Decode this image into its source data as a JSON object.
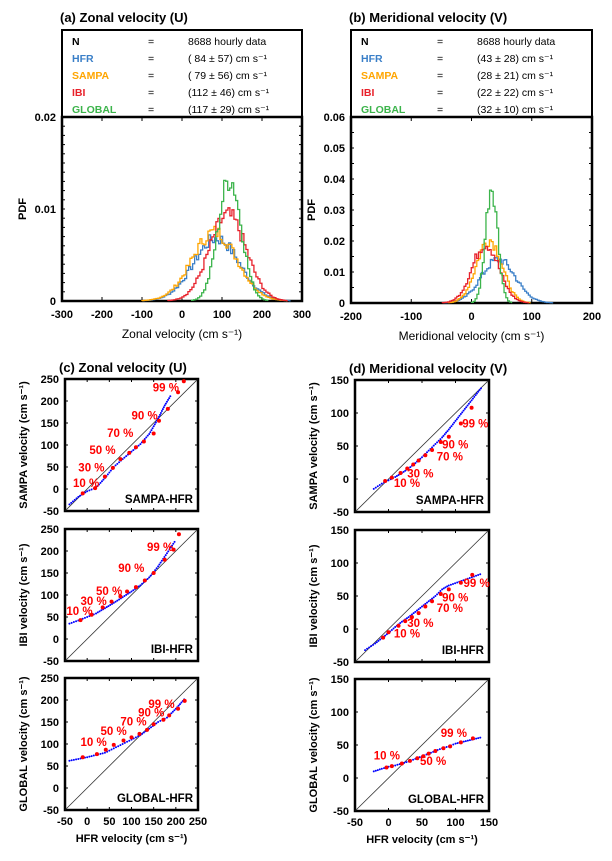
{
  "colors": {
    "HFR": "#3a7fc8",
    "SAMPA": "#ffa500",
    "IBI": "#e8202a",
    "GLOBAL": "#3cb44b",
    "qq_points": "#0000ff",
    "qq_percentiles": "#ff0000"
  },
  "chart_data": [
    {
      "id": "a",
      "type": "line",
      "title": "(a) Zonal velocity (U)",
      "xlabel": "Zonal velocity (cm s⁻¹)",
      "ylabel": "PDF",
      "xlim": [
        -300,
        300
      ],
      "ylim": [
        0,
        0.02
      ],
      "xticks": [
        -300,
        -200,
        -100,
        0,
        100,
        200,
        300
      ],
      "yticks": [
        0,
        0.01,
        0.02
      ],
      "ytick_labels": [
        "0",
        "0.01",
        "0.02"
      ],
      "legend": {
        "n_label": "N",
        "n_value": "8688 hourly data",
        "entries": [
          {
            "name": "HFR",
            "value": "( 84 ± 57) cm  s⁻¹"
          },
          {
            "name": "SAMPA",
            "value": "( 79 ± 56) cm  s⁻¹"
          },
          {
            "name": "IBI",
            "value": "(112 ± 46) cm  s⁻¹"
          },
          {
            "name": "GLOBAL",
            "value": "(117 ± 29) cm  s⁻¹"
          }
        ]
      },
      "series": [
        {
          "name": "HFR",
          "mean": 84,
          "std": 57,
          "peak": 0.0068
        },
        {
          "name": "SAMPA",
          "mean": 79,
          "std": 56,
          "peak": 0.0075
        },
        {
          "name": "IBI",
          "mean": 112,
          "std": 46,
          "peak": 0.0093
        },
        {
          "name": "GLOBAL",
          "mean": 117,
          "std": 29,
          "peak": 0.0133
        }
      ]
    },
    {
      "id": "b",
      "type": "line",
      "title": "(b) Meridional velocity (V)",
      "xlabel": "Meridional velocity (cm s⁻¹)",
      "ylabel": "PDF",
      "xlim": [
        -200,
        200
      ],
      "ylim": [
        0,
        0.06
      ],
      "xticks": [
        -200,
        -100,
        0,
        100,
        200
      ],
      "yticks": [
        0,
        0.01,
        0.02,
        0.03,
        0.04,
        0.05,
        0.06
      ],
      "ytick_labels": [
        "0",
        "0.01",
        "0.02",
        "0.03",
        "0.04",
        "0.05",
        "0.06"
      ],
      "legend": {
        "n_label": "N",
        "n_value": "8688 hourly data",
        "entries": [
          {
            "name": "HFR",
            "value": "(43 ± 28) cm  s⁻¹"
          },
          {
            "name": "SAMPA",
            "value": "(28 ± 21) cm  s⁻¹"
          },
          {
            "name": "IBI",
            "value": "(22 ± 22) cm  s⁻¹"
          },
          {
            "name": "GLOBAL",
            "value": "(32 ± 10) cm  s⁻¹"
          }
        ]
      },
      "series": [
        {
          "name": "HFR",
          "mean": 43,
          "std": 28,
          "peak": 0.014
        },
        {
          "name": "SAMPA",
          "mean": 28,
          "std": 21,
          "peak": 0.0205
        },
        {
          "name": "IBI",
          "mean": 22,
          "std": 22,
          "peak": 0.019
        },
        {
          "name": "GLOBAL",
          "mean": 32,
          "std": 10,
          "peak": 0.038
        }
      ]
    },
    {
      "id": "c",
      "type": "scatter",
      "title": "(c) Zonal velocity (U)",
      "xlabel": "HFR velocity (cm s⁻¹)",
      "xlim": [
        -50,
        250
      ],
      "ylim": [
        -50,
        250
      ],
      "xticks": [
        -50,
        0,
        50,
        100,
        150,
        200,
        250
      ],
      "yticks": [
        -50,
        0,
        50,
        100,
        150,
        200,
        250
      ],
      "panels": [
        {
          "pair": "SAMPA-HFR",
          "ylabel": "SAMPA  velocity (cm s⁻¹)",
          "qq_curve": [
            [
              -40,
              -35
            ],
            [
              -20,
              -18
            ],
            [
              0,
              -5
            ],
            [
              20,
              3
            ],
            [
              40,
              25
            ],
            [
              60,
              50
            ],
            [
              80,
              68
            ],
            [
              100,
              85
            ],
            [
              120,
              102
            ],
            [
              140,
              125
            ],
            [
              160,
              160
            ],
            [
              175,
              190
            ],
            [
              190,
              215
            ]
          ],
          "percentile_points": [
            [
              -10,
              -10
            ],
            [
              18,
              2
            ],
            [
              40,
              28
            ],
            [
              58,
              48
            ],
            [
              75,
              68
            ],
            [
              95,
              82
            ],
            [
              110,
              95
            ],
            [
              128,
              108
            ],
            [
              150,
              126
            ],
            [
              162,
              155
            ],
            [
              182,
              182
            ],
            [
              205,
              220
            ],
            [
              218,
              245
            ]
          ],
          "labels": [
            {
              "text": "10 %",
              "x": -32,
              "y": 5
            },
            {
              "text": "30 %",
              "x": -20,
              "y": 40
            },
            {
              "text": "50 %",
              "x": 5,
              "y": 80
            },
            {
              "text": "70 %",
              "x": 45,
              "y": 118
            },
            {
              "text": "90 %",
              "x": 100,
              "y": 158
            },
            {
              "text": "99 %",
              "x": 148,
              "y": 222
            }
          ]
        },
        {
          "pair": "IBI-HFR",
          "ylabel": "IBI  velocity (cm s⁻¹)",
          "qq_curve": [
            [
              -40,
              35
            ],
            [
              -20,
              42
            ],
            [
              0,
              50
            ],
            [
              20,
              58
            ],
            [
              40,
              70
            ],
            [
              60,
              82
            ],
            [
              80,
              95
            ],
            [
              100,
              108
            ],
            [
              120,
              122
            ],
            [
              140,
              140
            ],
            [
              160,
              165
            ],
            [
              180,
              195
            ],
            [
              200,
              225
            ]
          ],
          "percentile_points": [
            [
              -15,
              43
            ],
            [
              10,
              55
            ],
            [
              35,
              72
            ],
            [
              55,
              85
            ],
            [
              75,
              97
            ],
            [
              90,
              108
            ],
            [
              110,
              118
            ],
            [
              130,
              133
            ],
            [
              150,
              150
            ],
            [
              175,
              180
            ],
            [
              195,
              203
            ],
            [
              207,
              238
            ]
          ],
          "labels": [
            {
              "text": "10 %",
              "x": -47,
              "y": 55
            },
            {
              "text": "30 %",
              "x": -15,
              "y": 77
            },
            {
              "text": "50 %",
              "x": 20,
              "y": 100
            },
            {
              "text": "90 %",
              "x": 70,
              "y": 152
            },
            {
              "text": "99 %",
              "x": 135,
              "y": 200
            }
          ]
        },
        {
          "pair": "GLOBAL-HFR",
          "ylabel": "GLOBAL  velocity (cm s⁻¹)",
          "qq_curve": [
            [
              -40,
              62
            ],
            [
              -20,
              66
            ],
            [
              0,
              70
            ],
            [
              20,
              75
            ],
            [
              40,
              80
            ],
            [
              60,
              90
            ],
            [
              80,
              100
            ],
            [
              100,
              110
            ],
            [
              120,
              120
            ],
            [
              140,
              135
            ],
            [
              160,
              150
            ],
            [
              180,
              160
            ],
            [
              200,
              180
            ],
            [
              222,
              205
            ]
          ],
          "percentile_points": [
            [
              -10,
              70
            ],
            [
              22,
              77
            ],
            [
              42,
              87
            ],
            [
              60,
              98
            ],
            [
              82,
              108
            ],
            [
              100,
              115
            ],
            [
              118,
              123
            ],
            [
              135,
              132
            ],
            [
              150,
              145
            ],
            [
              172,
              155
            ],
            [
              185,
              165
            ],
            [
              205,
              180
            ],
            [
              220,
              198
            ]
          ],
          "labels": [
            {
              "text": "10 %",
              "x": -15,
              "y": 95
            },
            {
              "text": "50 %",
              "x": 30,
              "y": 120
            },
            {
              "text": "70 %",
              "x": 75,
              "y": 142
            },
            {
              "text": "90 %",
              "x": 115,
              "y": 162
            },
            {
              "text": "99 %",
              "x": 138,
              "y": 182
            }
          ]
        }
      ]
    },
    {
      "id": "d",
      "type": "scatter",
      "title": "(d) Meridional velocity (V)",
      "xlabel": "HFR velocity (cm s⁻¹)",
      "xlim": [
        -50,
        150
      ],
      "ylim": [
        -50,
        150
      ],
      "xticks": [
        -50,
        0,
        50,
        100,
        150
      ],
      "yticks": [
        -50,
        0,
        50,
        100,
        150
      ],
      "panels": [
        {
          "pair": "SAMPA-HFR",
          "ylabel": "SAMPA  velocity (cm s⁻¹)",
          "qq_curve": [
            [
              -22,
              -15
            ],
            [
              -10,
              -7
            ],
            [
              0,
              -2
            ],
            [
              10,
              3
            ],
            [
              20,
              9
            ],
            [
              30,
              16
            ],
            [
              40,
              24
            ],
            [
              50,
              33
            ],
            [
              60,
              43
            ],
            [
              70,
              53
            ],
            [
              80,
              63
            ],
            [
              90,
              75
            ],
            [
              140,
              140
            ]
          ],
          "percentile_points": [
            [
              -5,
              -3
            ],
            [
              5,
              2
            ],
            [
              18,
              9
            ],
            [
              28,
              16
            ],
            [
              37,
              22
            ],
            [
              45,
              28
            ],
            [
              55,
              36
            ],
            [
              65,
              44
            ],
            [
              78,
              56
            ],
            [
              90,
              64
            ],
            [
              108,
              84
            ],
            [
              124,
              108
            ]
          ],
          "labels": [
            {
              "text": "10 %",
              "x": 8,
              "y": -12
            },
            {
              "text": "30 %",
              "x": 28,
              "y": 2
            },
            {
              "text": "70 %",
              "x": 72,
              "y": 28
            },
            {
              "text": "90 %",
              "x": 80,
              "y": 46
            },
            {
              "text": "99 %",
              "x": 110,
              "y": 78
            }
          ]
        },
        {
          "pair": "IBI-HFR",
          "ylabel": "IBI  velocity (cm s⁻¹)",
          "qq_curve": [
            [
              -35,
              -32
            ],
            [
              -20,
              -22
            ],
            [
              -10,
              -14
            ],
            [
              0,
              -6
            ],
            [
              10,
              3
            ],
            [
              20,
              11
            ],
            [
              30,
              18
            ],
            [
              40,
              26
            ],
            [
              50,
              34
            ],
            [
              60,
              42
            ],
            [
              70,
              50
            ],
            [
              80,
              60
            ],
            [
              90,
              66
            ],
            [
              140,
              84
            ]
          ],
          "percentile_points": [
            [
              -8,
              -13
            ],
            [
              0,
              -5
            ],
            [
              15,
              5
            ],
            [
              25,
              12
            ],
            [
              35,
              18
            ],
            [
              45,
              24
            ],
            [
              55,
              34
            ],
            [
              65,
              42
            ],
            [
              78,
              53
            ],
            [
              90,
              60
            ],
            [
              108,
              70
            ],
            [
              125,
              82
            ]
          ],
          "labels": [
            {
              "text": "10 %",
              "x": 8,
              "y": -13
            },
            {
              "text": "30 %",
              "x": 28,
              "y": 3
            },
            {
              "text": "70 %",
              "x": 72,
              "y": 26
            },
            {
              "text": "90 %",
              "x": 80,
              "y": 42
            },
            {
              "text": "99 %",
              "x": 112,
              "y": 64
            }
          ]
        },
        {
          "pair": "GLOBAL-HFR",
          "ylabel": "GLOBAL  velocity (cm s⁻¹)",
          "qq_curve": [
            [
              -22,
              10
            ],
            [
              -10,
              14
            ],
            [
              0,
              17
            ],
            [
              10,
              19
            ],
            [
              20,
              22
            ],
            [
              30,
              25
            ],
            [
              40,
              29
            ],
            [
              50,
              33
            ],
            [
              60,
              37
            ],
            [
              70,
              41
            ],
            [
              80,
              45
            ],
            [
              90,
              48
            ],
            [
              100,
              52
            ],
            [
              140,
              62
            ]
          ],
          "percentile_points": [
            [
              -3,
              16
            ],
            [
              5,
              18
            ],
            [
              20,
              22
            ],
            [
              32,
              26
            ],
            [
              43,
              30
            ],
            [
              52,
              33
            ],
            [
              60,
              37
            ],
            [
              70,
              41
            ],
            [
              82,
              45
            ],
            [
              92,
              48
            ],
            [
              108,
              54
            ],
            [
              126,
              60
            ]
          ],
          "labels": [
            {
              "text": "10 %",
              "x": -22,
              "y": 28
            },
            {
              "text": "50 %",
              "x": 47,
              "y": 20
            },
            {
              "text": "99 %",
              "x": 78,
              "y": 62
            }
          ]
        }
      ]
    }
  ]
}
